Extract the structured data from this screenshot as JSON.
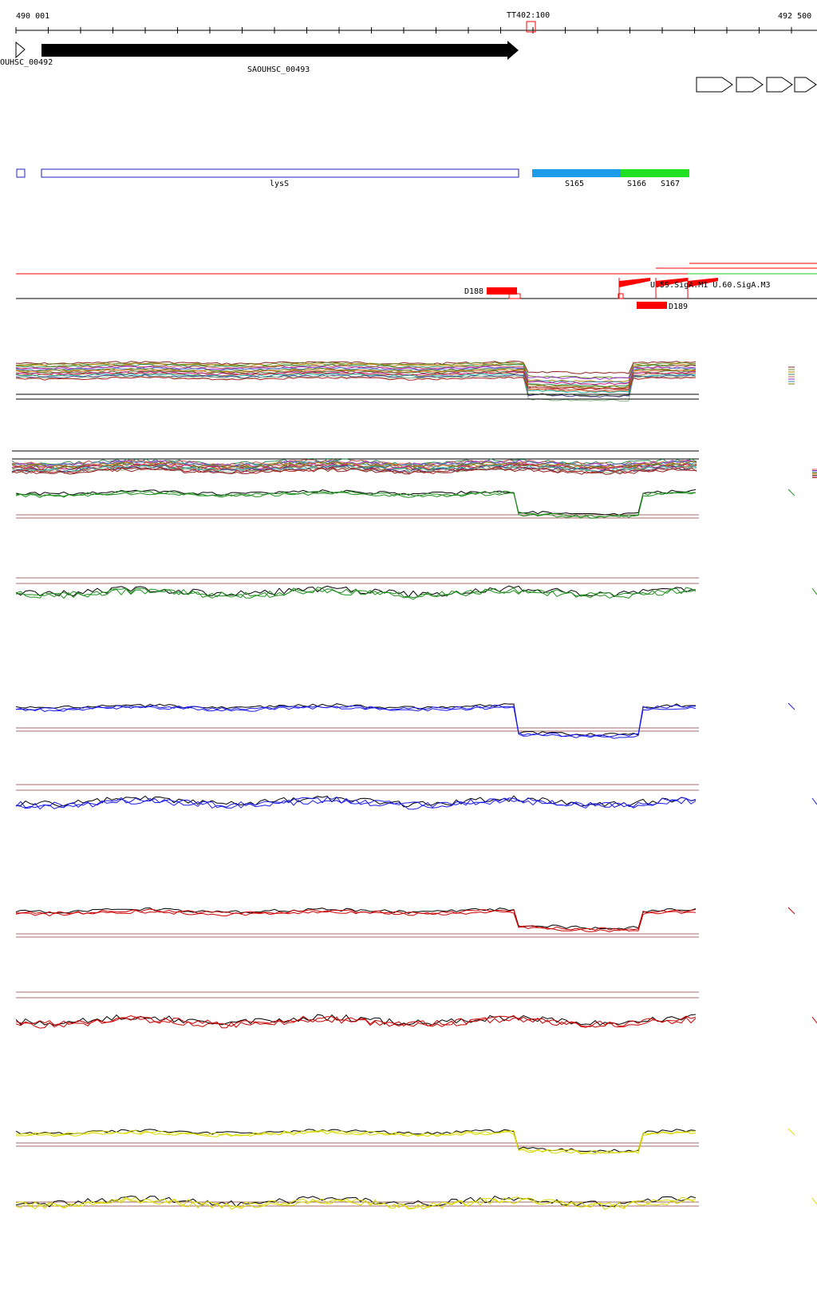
{
  "ruler": {
    "start_label": "490 001",
    "end_label": "492 500",
    "marker_label": "TT402:100"
  },
  "genes": {
    "left_gene_label": "OUHSC_00492",
    "main_gene_label": "SAOUHSC_00493"
  },
  "features": {
    "gene_name": "lysS",
    "segments": [
      "S165",
      "S166",
      "S167"
    ],
    "segment_colors": [
      "#1e9be9",
      "#22e022",
      "#22e022"
    ]
  },
  "annotations": {
    "d188_label": "D188",
    "d189_label": "D189",
    "overlap_label": "U.59.SigA.M1 U.60.SigA.M3"
  },
  "colors": {
    "red": "#ff0000",
    "blue": "#1a1aee",
    "green": "#1f8f1f",
    "yellow": "#d9d900",
    "brown": "#8b3a3a",
    "black": "#000000"
  },
  "icons": [
    "gene-arrow-icon",
    "strand-chevron-icon"
  ]
}
